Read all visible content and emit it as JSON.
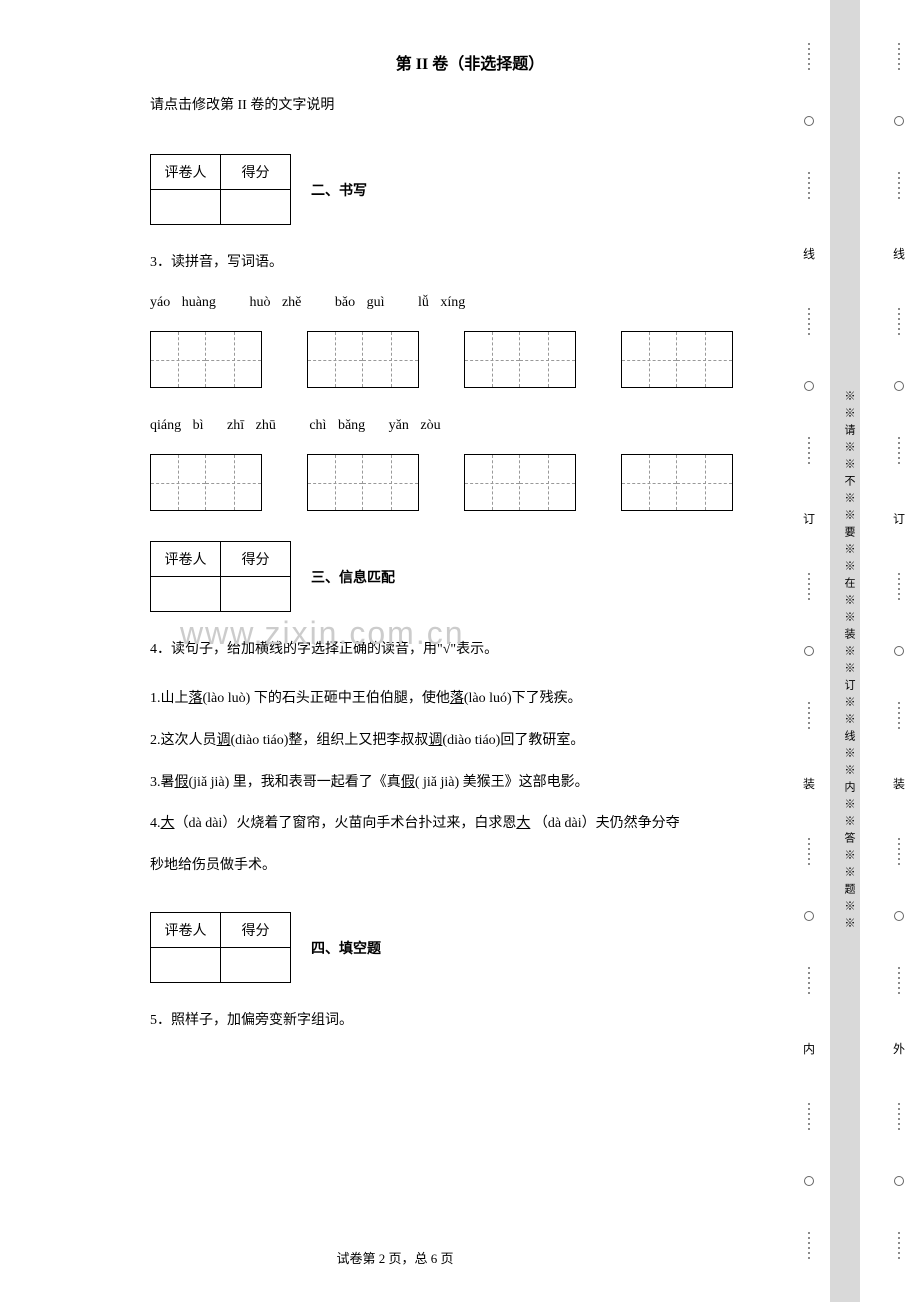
{
  "section_title": "第 II 卷（非选择题）",
  "instruction_text": "请点击修改第 II 卷的文字说明",
  "score_table": {
    "header1": "评卷人",
    "header2": "得分"
  },
  "section2_label": "二、书写",
  "q3": {
    "number": "3．",
    "text": "读拼音，写词语。"
  },
  "pinyin_row1": {
    "p1": "yáo",
    "p2": "huàng",
    "p3": "huò",
    "p4": "zhě",
    "p5": "bǎo",
    "p6": "guì",
    "p7": "lǚ",
    "p8": "xíng"
  },
  "pinyin_row2": {
    "p1": "qiáng",
    "p2": "bì",
    "p3": "zhī",
    "p4": "zhū",
    "p5": "chì",
    "p6": "bǎng",
    "p7": "yǎn",
    "p8": "zòu"
  },
  "watermark": "www.zixin.com.cn",
  "section3_label": "三、信息匹配",
  "q4": {
    "number": "4．",
    "text": "读句子，给加横线的字选择正确的读音，用\"√\"表示。",
    "line1_pre": "1.山上",
    "line1_u1": "落",
    "line1_mid1": "(lào luò)  下的石头正砸中王伯伯腿，使他",
    "line1_u2": "落",
    "line1_end": "(lào luó)下了残疾。",
    "line2_pre": "2.这次人员",
    "line2_u1": "调",
    "line2_mid1": "(diào tiáo)整，组织上又把李叔叔",
    "line2_u2": "调",
    "line2_end": "(diào tiáo)回了教研室。",
    "line3_pre": "3.暑",
    "line3_u1": "假",
    "line3_mid1": "(jiǎ jià)  里，我和表哥一起看了《真",
    "line3_u2": "假",
    "line3_end": "( jiǎ jià)  美猴王》这部电影。",
    "line4_pre": "4.",
    "line4_u1": "大",
    "line4_mid1": "（dà dài）火烧着了窗帘，火苗向手术台扑过来，白求恩",
    "line4_u2": "大",
    "line4_mid2": " （dà dài）夫仍然争分夺",
    "line4_end": "秒地给伤员做手术。"
  },
  "section4_label": "四、填空题",
  "q5": {
    "number": "5．",
    "text": "照样子，加偏旁变新字组词。"
  },
  "footer": "试卷第 2 页，总 6 页",
  "binding": {
    "char_xian": "线",
    "char_ding": "订",
    "char_zhuang": "装",
    "char_nei": "内",
    "char_wai": "外"
  },
  "vertical_warning": "※※请※※不※※要※※在※※装※※订※※线※※内※※答※※题※※"
}
